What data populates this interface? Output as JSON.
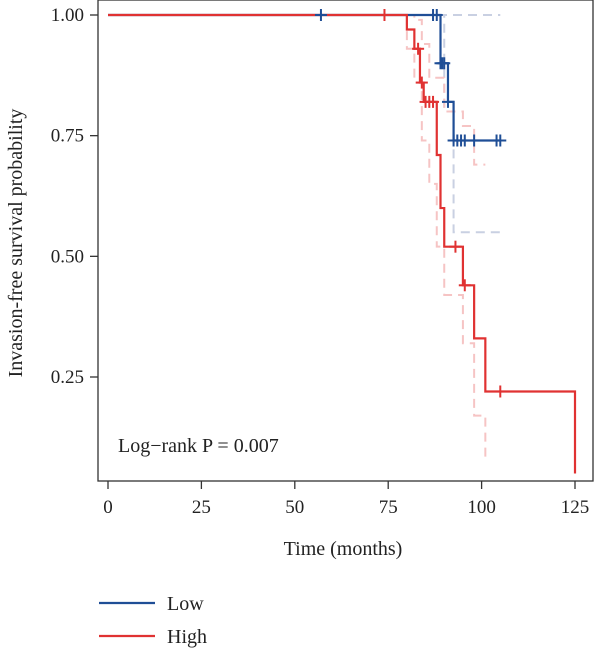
{
  "chart_data": {
    "type": "line",
    "subtype": "kaplan-meier",
    "title": "",
    "xlabel": "Time (months)",
    "ylabel": "Invasion-free survival probability",
    "xlim": [
      -3,
      128
    ],
    "ylim": [
      0.05,
      1.02
    ],
    "x_ticks": [
      0,
      25,
      50,
      75,
      100,
      125
    ],
    "x_tick_labels": [
      "0",
      "25",
      "50",
      "75",
      "100",
      "125"
    ],
    "y_ticks": [
      0.25,
      0.5,
      0.75,
      1.0
    ],
    "y_tick_labels": [
      "0.25",
      "0.50",
      "0.75",
      "1.00"
    ],
    "annotation": "Log−rank P = 0.007",
    "legend_position": "bottom-left",
    "grid": false,
    "series": [
      {
        "name": "Low",
        "color": "#1f4e96",
        "steps": [
          [
            0,
            1.0
          ],
          [
            89,
            0.9
          ],
          [
            91,
            0.82
          ],
          [
            92.5,
            0.74
          ],
          [
            105,
            0.74
          ]
        ],
        "censor_x": [
          57,
          87,
          88,
          89,
          89.5,
          90,
          91,
          92.5,
          93.5,
          94.5,
          95.5,
          98,
          104,
          105
        ],
        "ci_upper": [
          [
            0,
            1.0
          ],
          [
            105,
            1.0
          ]
        ],
        "ci_lower": [
          [
            0,
            1.0
          ],
          [
            90,
            0.8
          ],
          [
            92.5,
            0.55
          ],
          [
            105,
            0.55
          ]
        ]
      },
      {
        "name": "High",
        "color": "#e03232",
        "steps": [
          [
            0,
            1.0
          ],
          [
            80,
            0.97
          ],
          [
            82,
            0.93
          ],
          [
            83.5,
            0.86
          ],
          [
            84.5,
            0.82
          ],
          [
            88,
            0.71
          ],
          [
            89,
            0.6
          ],
          [
            90,
            0.52
          ],
          [
            95,
            0.44
          ],
          [
            98,
            0.33
          ],
          [
            101,
            0.22
          ],
          [
            125,
            0.22
          ],
          [
            125,
            0.05
          ]
        ],
        "censor_x": [
          74,
          83,
          84,
          85,
          86,
          87,
          93,
          95.5,
          105
        ],
        "ci_upper": [
          [
            0,
            1.0
          ],
          [
            82,
            0.99
          ],
          [
            84,
            0.94
          ],
          [
            86,
            0.87
          ],
          [
            90,
            0.8
          ],
          [
            95,
            0.77
          ],
          [
            98,
            0.69
          ],
          [
            101,
            0.69
          ]
        ],
        "ci_lower": [
          [
            0,
            1.0
          ],
          [
            80,
            0.93
          ],
          [
            82,
            0.86
          ],
          [
            84,
            0.74
          ],
          [
            86,
            0.65
          ],
          [
            88,
            0.52
          ],
          [
            90,
            0.42
          ],
          [
            95,
            0.32
          ],
          [
            98,
            0.17
          ],
          [
            101,
            0.08
          ]
        ]
      }
    ]
  }
}
